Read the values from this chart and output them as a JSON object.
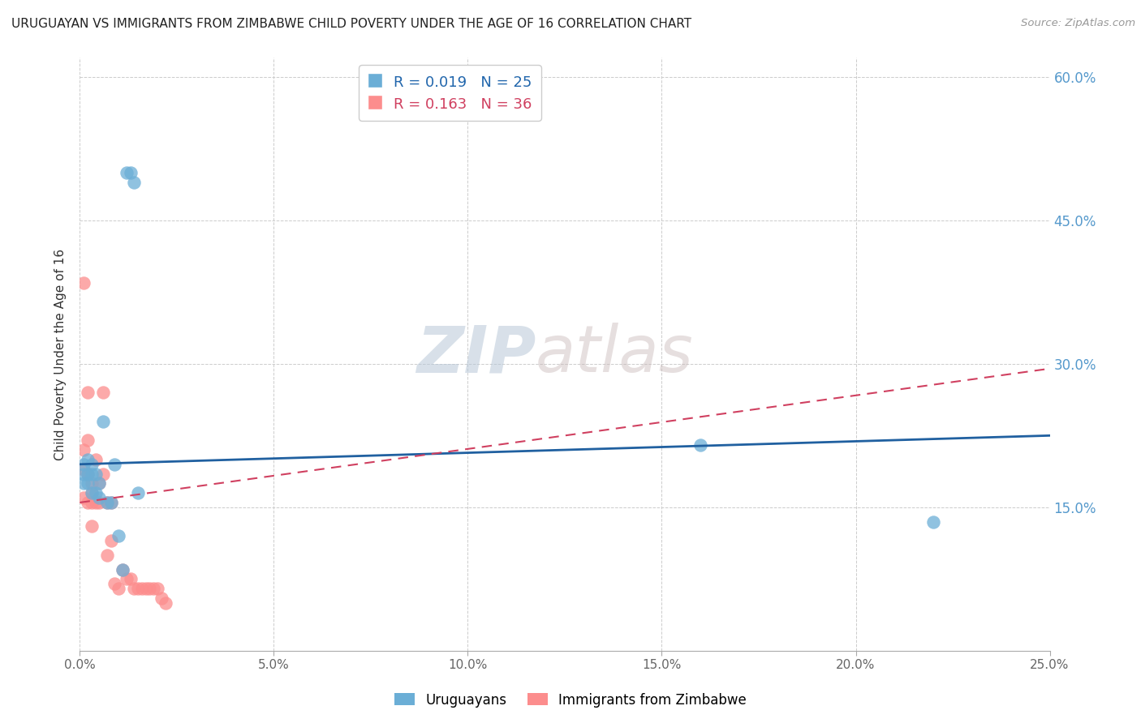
{
  "title": "URUGUAYAN VS IMMIGRANTS FROM ZIMBABWE CHILD POVERTY UNDER THE AGE OF 16 CORRELATION CHART",
  "source": "Source: ZipAtlas.com",
  "ylabel": "Child Poverty Under the Age of 16",
  "xlim": [
    0.0,
    0.25
  ],
  "ylim": [
    0.0,
    0.62
  ],
  "xticks": [
    0.0,
    0.05,
    0.1,
    0.15,
    0.2,
    0.25
  ],
  "yticks": [
    0.0,
    0.15,
    0.3,
    0.45,
    0.6
  ],
  "xticklabels": [
    "0.0%",
    "5.0%",
    "10.0%",
    "15.0%",
    "20.0%",
    "25.0%"
  ],
  "yticklabels_right": [
    "",
    "15.0%",
    "30.0%",
    "45.0%",
    "60.0%"
  ],
  "legend1_label": "R = 0.019   N = 25",
  "legend2_label": "R = 0.163   N = 36",
  "uruguayans_color": "#6baed6",
  "zimbabwe_color": "#fc8d8d",
  "trend_uruguayan_color": "#2060a0",
  "trend_zimbabwe_color": "#d04060",
  "watermark_zip": "ZIP",
  "watermark_atlas": "atlas",
  "uruguayans_x": [
    0.001,
    0.001,
    0.001,
    0.002,
    0.002,
    0.002,
    0.003,
    0.003,
    0.003,
    0.004,
    0.004,
    0.005,
    0.005,
    0.006,
    0.007,
    0.008,
    0.009,
    0.01,
    0.011,
    0.012,
    0.013,
    0.014,
    0.015,
    0.16,
    0.22
  ],
  "uruguayans_y": [
    0.195,
    0.185,
    0.175,
    0.2,
    0.185,
    0.175,
    0.195,
    0.185,
    0.165,
    0.185,
    0.165,
    0.175,
    0.16,
    0.24,
    0.155,
    0.155,
    0.195,
    0.12,
    0.085,
    0.5,
    0.5,
    0.49,
    0.165,
    0.215,
    0.135
  ],
  "zimbabwe_x": [
    0.001,
    0.001,
    0.001,
    0.001,
    0.002,
    0.002,
    0.002,
    0.002,
    0.003,
    0.003,
    0.003,
    0.003,
    0.004,
    0.004,
    0.005,
    0.005,
    0.006,
    0.006,
    0.007,
    0.007,
    0.008,
    0.008,
    0.009,
    0.01,
    0.011,
    0.012,
    0.013,
    0.014,
    0.015,
    0.016,
    0.017,
    0.018,
    0.019,
    0.02,
    0.021,
    0.022
  ],
  "zimbabwe_y": [
    0.385,
    0.21,
    0.19,
    0.16,
    0.27,
    0.22,
    0.185,
    0.155,
    0.175,
    0.165,
    0.155,
    0.13,
    0.2,
    0.155,
    0.175,
    0.155,
    0.27,
    0.185,
    0.155,
    0.1,
    0.155,
    0.115,
    0.07,
    0.065,
    0.085,
    0.075,
    0.075,
    0.065,
    0.065,
    0.065,
    0.065,
    0.065,
    0.065,
    0.065,
    0.055,
    0.05
  ],
  "trend_uru_x0": 0.0,
  "trend_uru_x1": 0.25,
  "trend_uru_y0": 0.195,
  "trend_uru_y1": 0.225,
  "trend_zim_x0": 0.0,
  "trend_zim_x1": 0.25,
  "trend_zim_y0": 0.155,
  "trend_zim_y1": 0.295
}
